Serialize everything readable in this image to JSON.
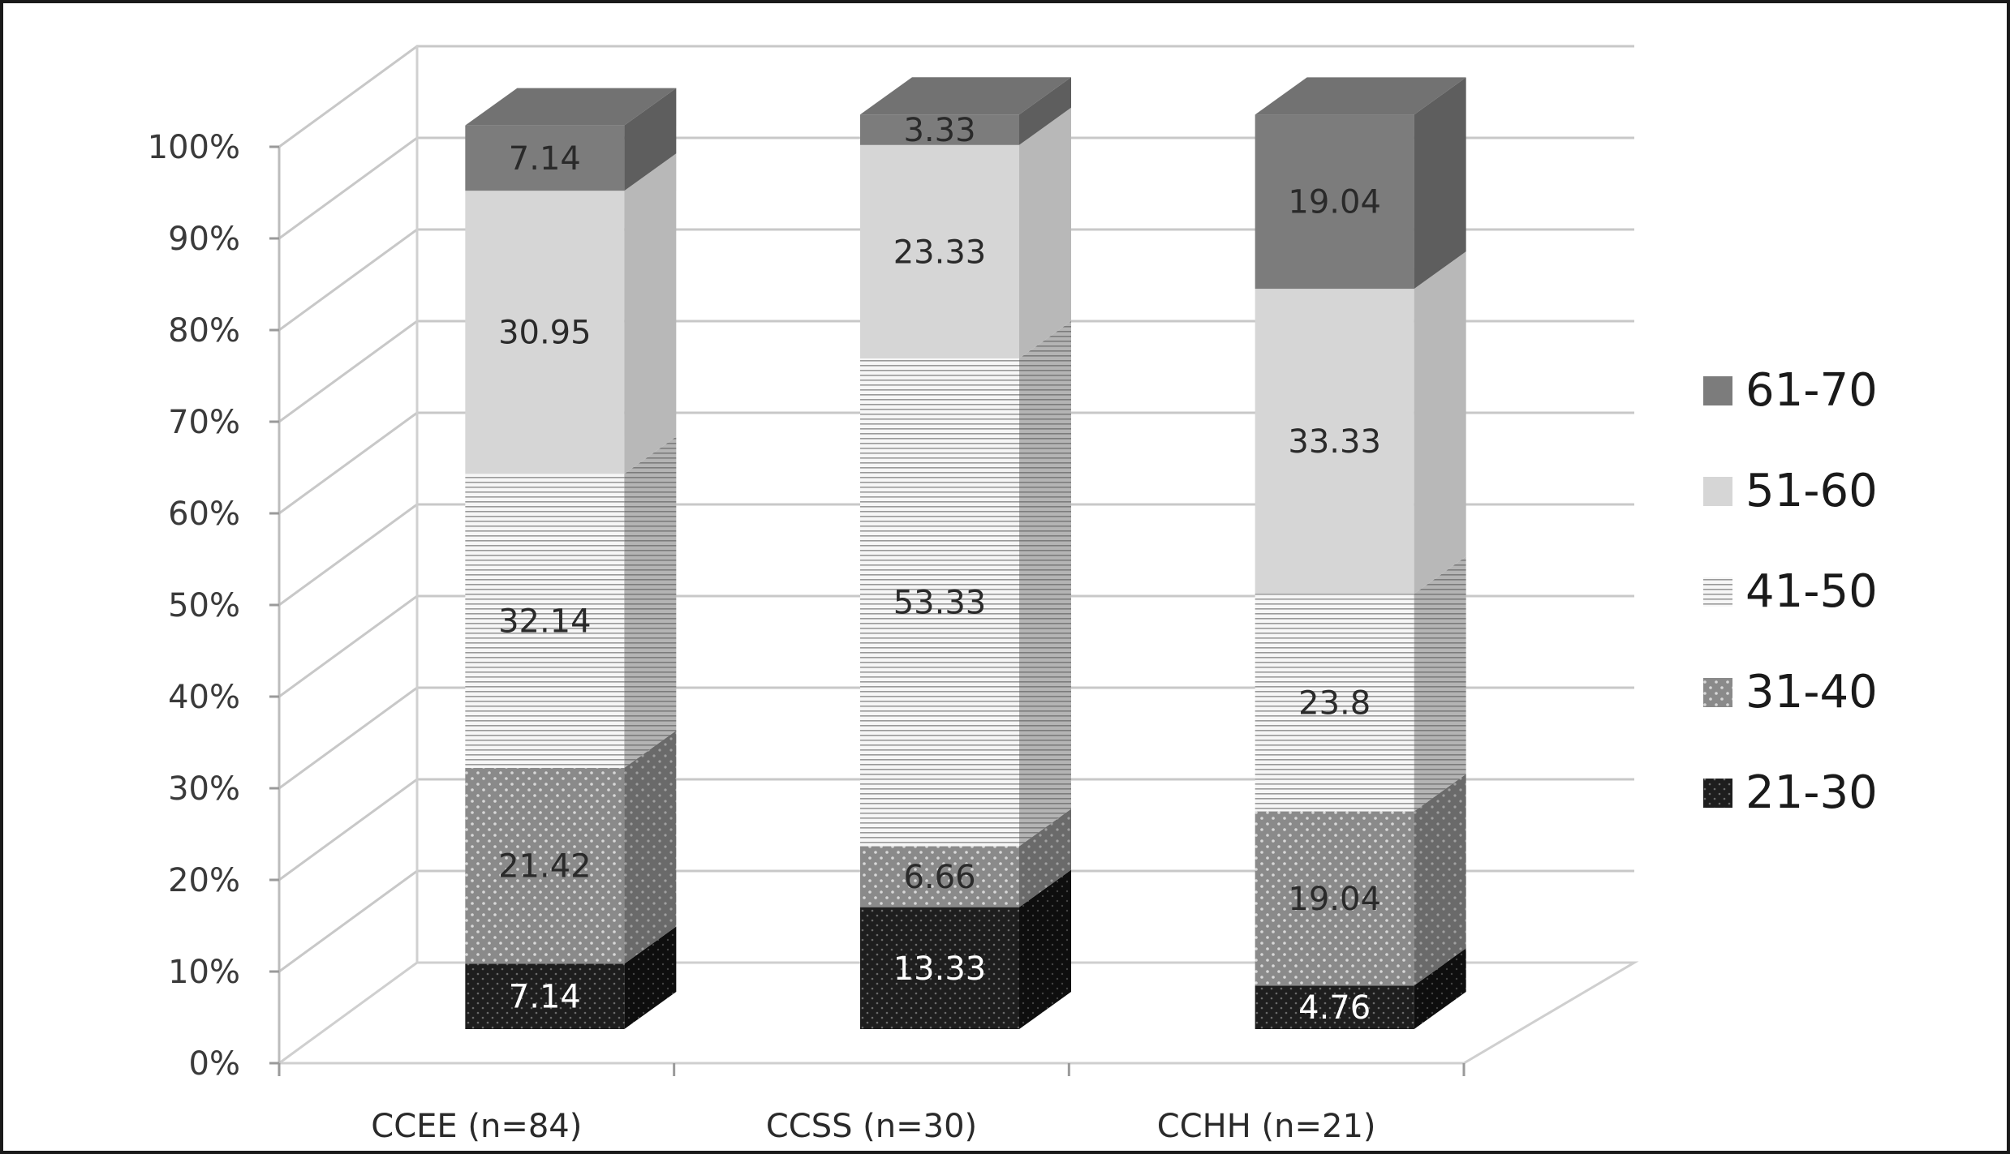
{
  "chart_data": {
    "type": "bar",
    "stacked": true,
    "percent_stacked": true,
    "three_d": true,
    "categories": [
      "CCEE (n=84)",
      "CCSS (n=30)",
      "CCHH (n=21)"
    ],
    "series": [
      {
        "name": "21-30",
        "values": [
          7.14,
          13.33,
          4.76
        ],
        "labels": [
          "7.14",
          "13.33",
          "4.76"
        ],
        "color": "#1e1e1e",
        "pattern": "dots-light"
      },
      {
        "name": "31-40",
        "values": [
          21.42,
          6.66,
          19.04
        ],
        "labels": [
          "21.42",
          "6.66",
          "19.04"
        ],
        "color": "#8a8a8a",
        "pattern": "dots"
      },
      {
        "name": "41-50",
        "values": [
          32.14,
          53.33,
          23.8
        ],
        "labels": [
          "32.14",
          "53.33",
          "23.8"
        ],
        "color": "#f2f2f2",
        "pattern": "horizontal-lines"
      },
      {
        "name": "51-60",
        "values": [
          30.95,
          23.33,
          33.33
        ],
        "labels": [
          "30.95",
          "23.33",
          "33.33"
        ],
        "color": "#d6d6d6",
        "pattern": "solid"
      },
      {
        "name": "61-70",
        "values": [
          7.14,
          3.33,
          19.04
        ],
        "labels": [
          "7.14",
          "3.33",
          "19.04"
        ],
        "color": "#7c7c7c",
        "pattern": "solid"
      }
    ],
    "y_ticks": [
      "0%",
      "10%",
      "20%",
      "30%",
      "40%",
      "50%",
      "60%",
      "70%",
      "80%",
      "90%",
      "100%"
    ],
    "ylim": [
      0,
      100
    ],
    "grid": true,
    "legend_position": "right",
    "legend_order": [
      "61-70",
      "51-60",
      "41-50",
      "31-40",
      "21-30"
    ]
  }
}
